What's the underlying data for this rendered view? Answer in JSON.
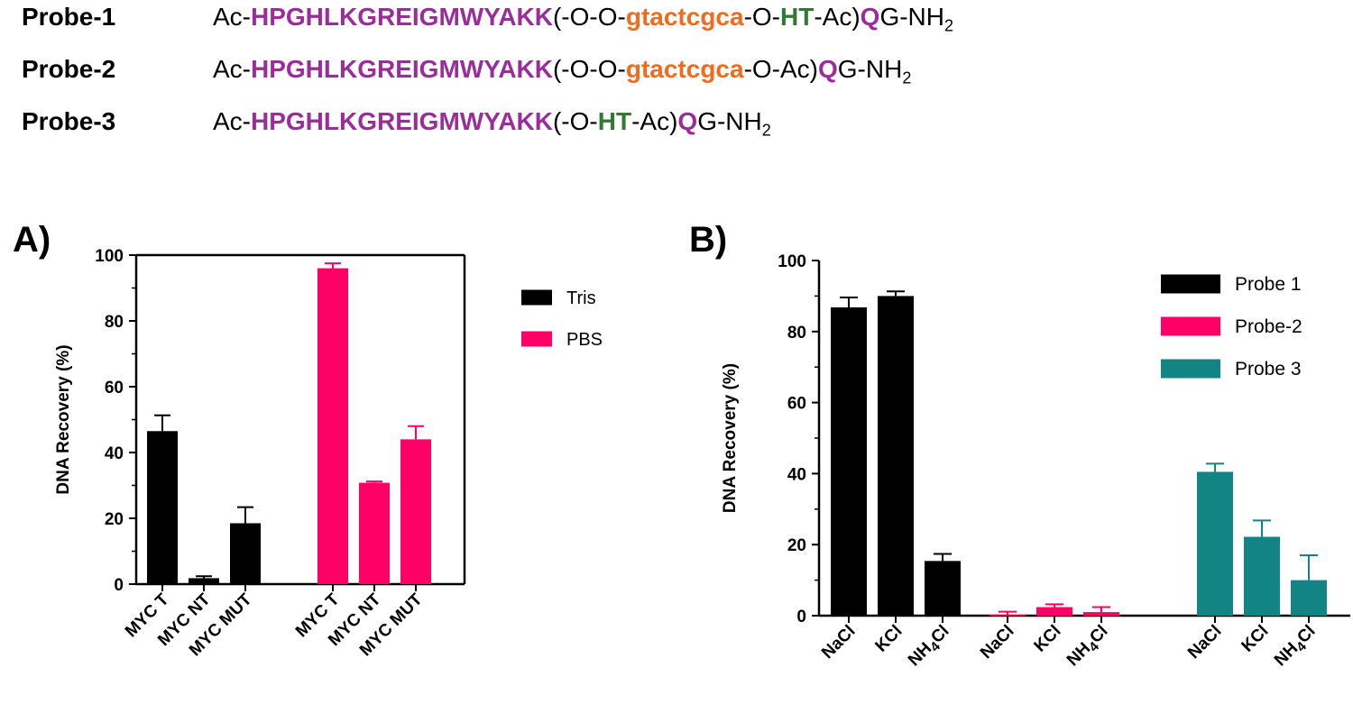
{
  "probes": [
    {
      "name": "Probe-1",
      "segments": [
        {
          "text": "Ac-",
          "style": "plain"
        },
        {
          "text": "HPGHLKGREIGMWYAKK",
          "style": "peptide"
        },
        {
          "text": "(-O-O-",
          "style": "plain"
        },
        {
          "text": "gtactcgca",
          "style": "dna"
        },
        {
          "text": "-O-",
          "style": "plain"
        },
        {
          "text": "HT",
          "style": "ht"
        },
        {
          "text": "-Ac)",
          "style": "plain"
        },
        {
          "text": "Q",
          "style": "peptide"
        },
        {
          "text": "G-NH",
          "style": "plain"
        },
        {
          "text": "2",
          "style": "sub"
        }
      ]
    },
    {
      "name": "Probe-2",
      "segments": [
        {
          "text": "Ac-",
          "style": "plain"
        },
        {
          "text": "HPGHLKGREIGMWYAKK",
          "style": "peptide"
        },
        {
          "text": "(-O-O-",
          "style": "plain"
        },
        {
          "text": "gtactcgca",
          "style": "dna"
        },
        {
          "text": "-O-Ac)",
          "style": "plain"
        },
        {
          "text": "Q",
          "style": "peptide"
        },
        {
          "text": "G-NH",
          "style": "plain"
        },
        {
          "text": "2",
          "style": "sub"
        }
      ]
    },
    {
      "name": "Probe-3",
      "segments": [
        {
          "text": "Ac-",
          "style": "plain"
        },
        {
          "text": "HPGHLKGREIGMWYAKK",
          "style": "peptide"
        },
        {
          "text": "(-O-",
          "style": "plain"
        },
        {
          "text": "HT",
          "style": "ht"
        },
        {
          "text": "-Ac)",
          "style": "plain"
        },
        {
          "text": "Q",
          "style": "peptide"
        },
        {
          "text": "G-NH",
          "style": "plain"
        },
        {
          "text": "2",
          "style": "sub"
        }
      ]
    }
  ],
  "chart_data": [
    {
      "panel": "A)",
      "type": "bar",
      "ylabel": "DNA Recovery  (%)",
      "ylim": [
        0,
        100
      ],
      "yticks": [
        0,
        20,
        40,
        60,
        80,
        100
      ],
      "legend_placement": "right-outside",
      "grid": false,
      "groups": [
        {
          "series": "Tris",
          "color": "#000000",
          "categories": [
            "MYC T",
            "MYC NT",
            "MYC MUT"
          ],
          "values": [
            46.5,
            1.8,
            18.5
          ],
          "errors": [
            4.8,
            0.6,
            4.9
          ]
        },
        {
          "series": "PBS",
          "color": "#ff0066",
          "categories": [
            "MYC T",
            "MYC NT",
            "MYC MUT"
          ],
          "values": [
            96,
            30.8,
            44
          ],
          "errors": [
            1.5,
            0.4,
            4
          ]
        }
      ],
      "legend": [
        {
          "name": "Tris",
          "color": "#000000"
        },
        {
          "name": "PBS",
          "color": "#ff0066"
        }
      ]
    },
    {
      "panel": "B)",
      "type": "bar",
      "ylabel": "DNA Recovery  (%)",
      "ylim": [
        0,
        100
      ],
      "yticks": [
        0,
        20,
        40,
        60,
        80,
        100
      ],
      "legend_placement": "top-right",
      "grid": false,
      "groups": [
        {
          "series": "Probe 1",
          "color": "#000000",
          "categories": [
            "NaCl",
            "KCl",
            "NH4Cl"
          ],
          "values": [
            86.8,
            90,
            15.4
          ],
          "errors": [
            2.8,
            1.3,
            2
          ]
        },
        {
          "series": "Probe-2",
          "color": "#ff0066",
          "categories": [
            "NaCl",
            "KCl",
            "NH4Cl"
          ],
          "values": [
            0.3,
            2.4,
            1
          ],
          "errors": [
            0.8,
            0.8,
            1.4
          ]
        },
        {
          "series": "Probe 3",
          "color": "#138484",
          "categories": [
            "NaCl",
            "KCl",
            "NH4Cl"
          ],
          "values": [
            40.5,
            22.2,
            10
          ],
          "errors": [
            2.3,
            4.6,
            7
          ]
        }
      ],
      "legend": [
        {
          "name": "Probe 1",
          "color": "#000000"
        },
        {
          "name": "Probe-2",
          "color": "#ff0066"
        },
        {
          "name": "Probe 3",
          "color": "#138484"
        }
      ]
    }
  ]
}
